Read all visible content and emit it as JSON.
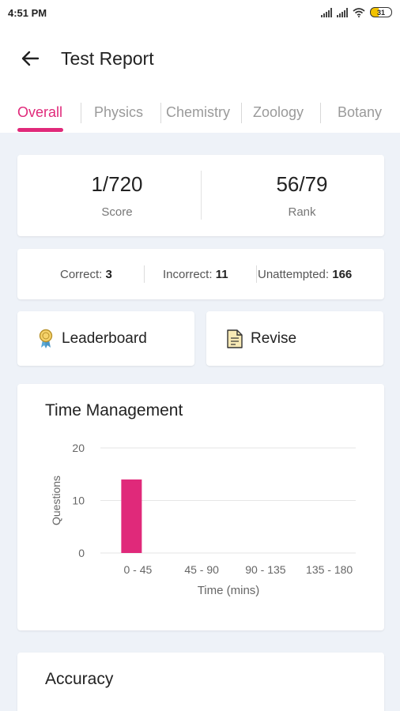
{
  "status_bar": {
    "time": "4:51 PM",
    "battery": "31"
  },
  "header": {
    "title": "Test Report"
  },
  "tabs": [
    {
      "label": "Overall",
      "active": true
    },
    {
      "label": "Physics",
      "active": false
    },
    {
      "label": "Chemistry",
      "active": false
    },
    {
      "label": "Zoology",
      "active": false
    },
    {
      "label": "Botany",
      "active": false
    }
  ],
  "summary": {
    "score_value": "1/720",
    "score_label": "Score",
    "rank_value": "56/79",
    "rank_label": "Rank"
  },
  "counts": {
    "correct_label": "Correct:",
    "correct_value": "3",
    "incorrect_label": "Incorrect:",
    "incorrect_value": "11",
    "unattempted_label": "Unattempted:",
    "unattempted_value": "166"
  },
  "actions": {
    "leaderboard_label": "Leaderboard",
    "revise_label": "Revise"
  },
  "time_management": {
    "title": "Time Management"
  },
  "chart_data": {
    "type": "bar",
    "categories": [
      "0 - 45",
      "45 - 90",
      "90 - 135",
      "135 - 180"
    ],
    "values": [
      14,
      0,
      0,
      0
    ],
    "xlabel": "Time (mins)",
    "ylabel": "Questions",
    "ylim": [
      0,
      20
    ],
    "yticks": [
      0,
      10,
      20
    ],
    "grid": true,
    "bar_color": "#e0297a"
  },
  "accuracy": {
    "title": "Accuracy"
  },
  "colors": {
    "accent": "#e0297a",
    "background": "#eef2f8"
  }
}
